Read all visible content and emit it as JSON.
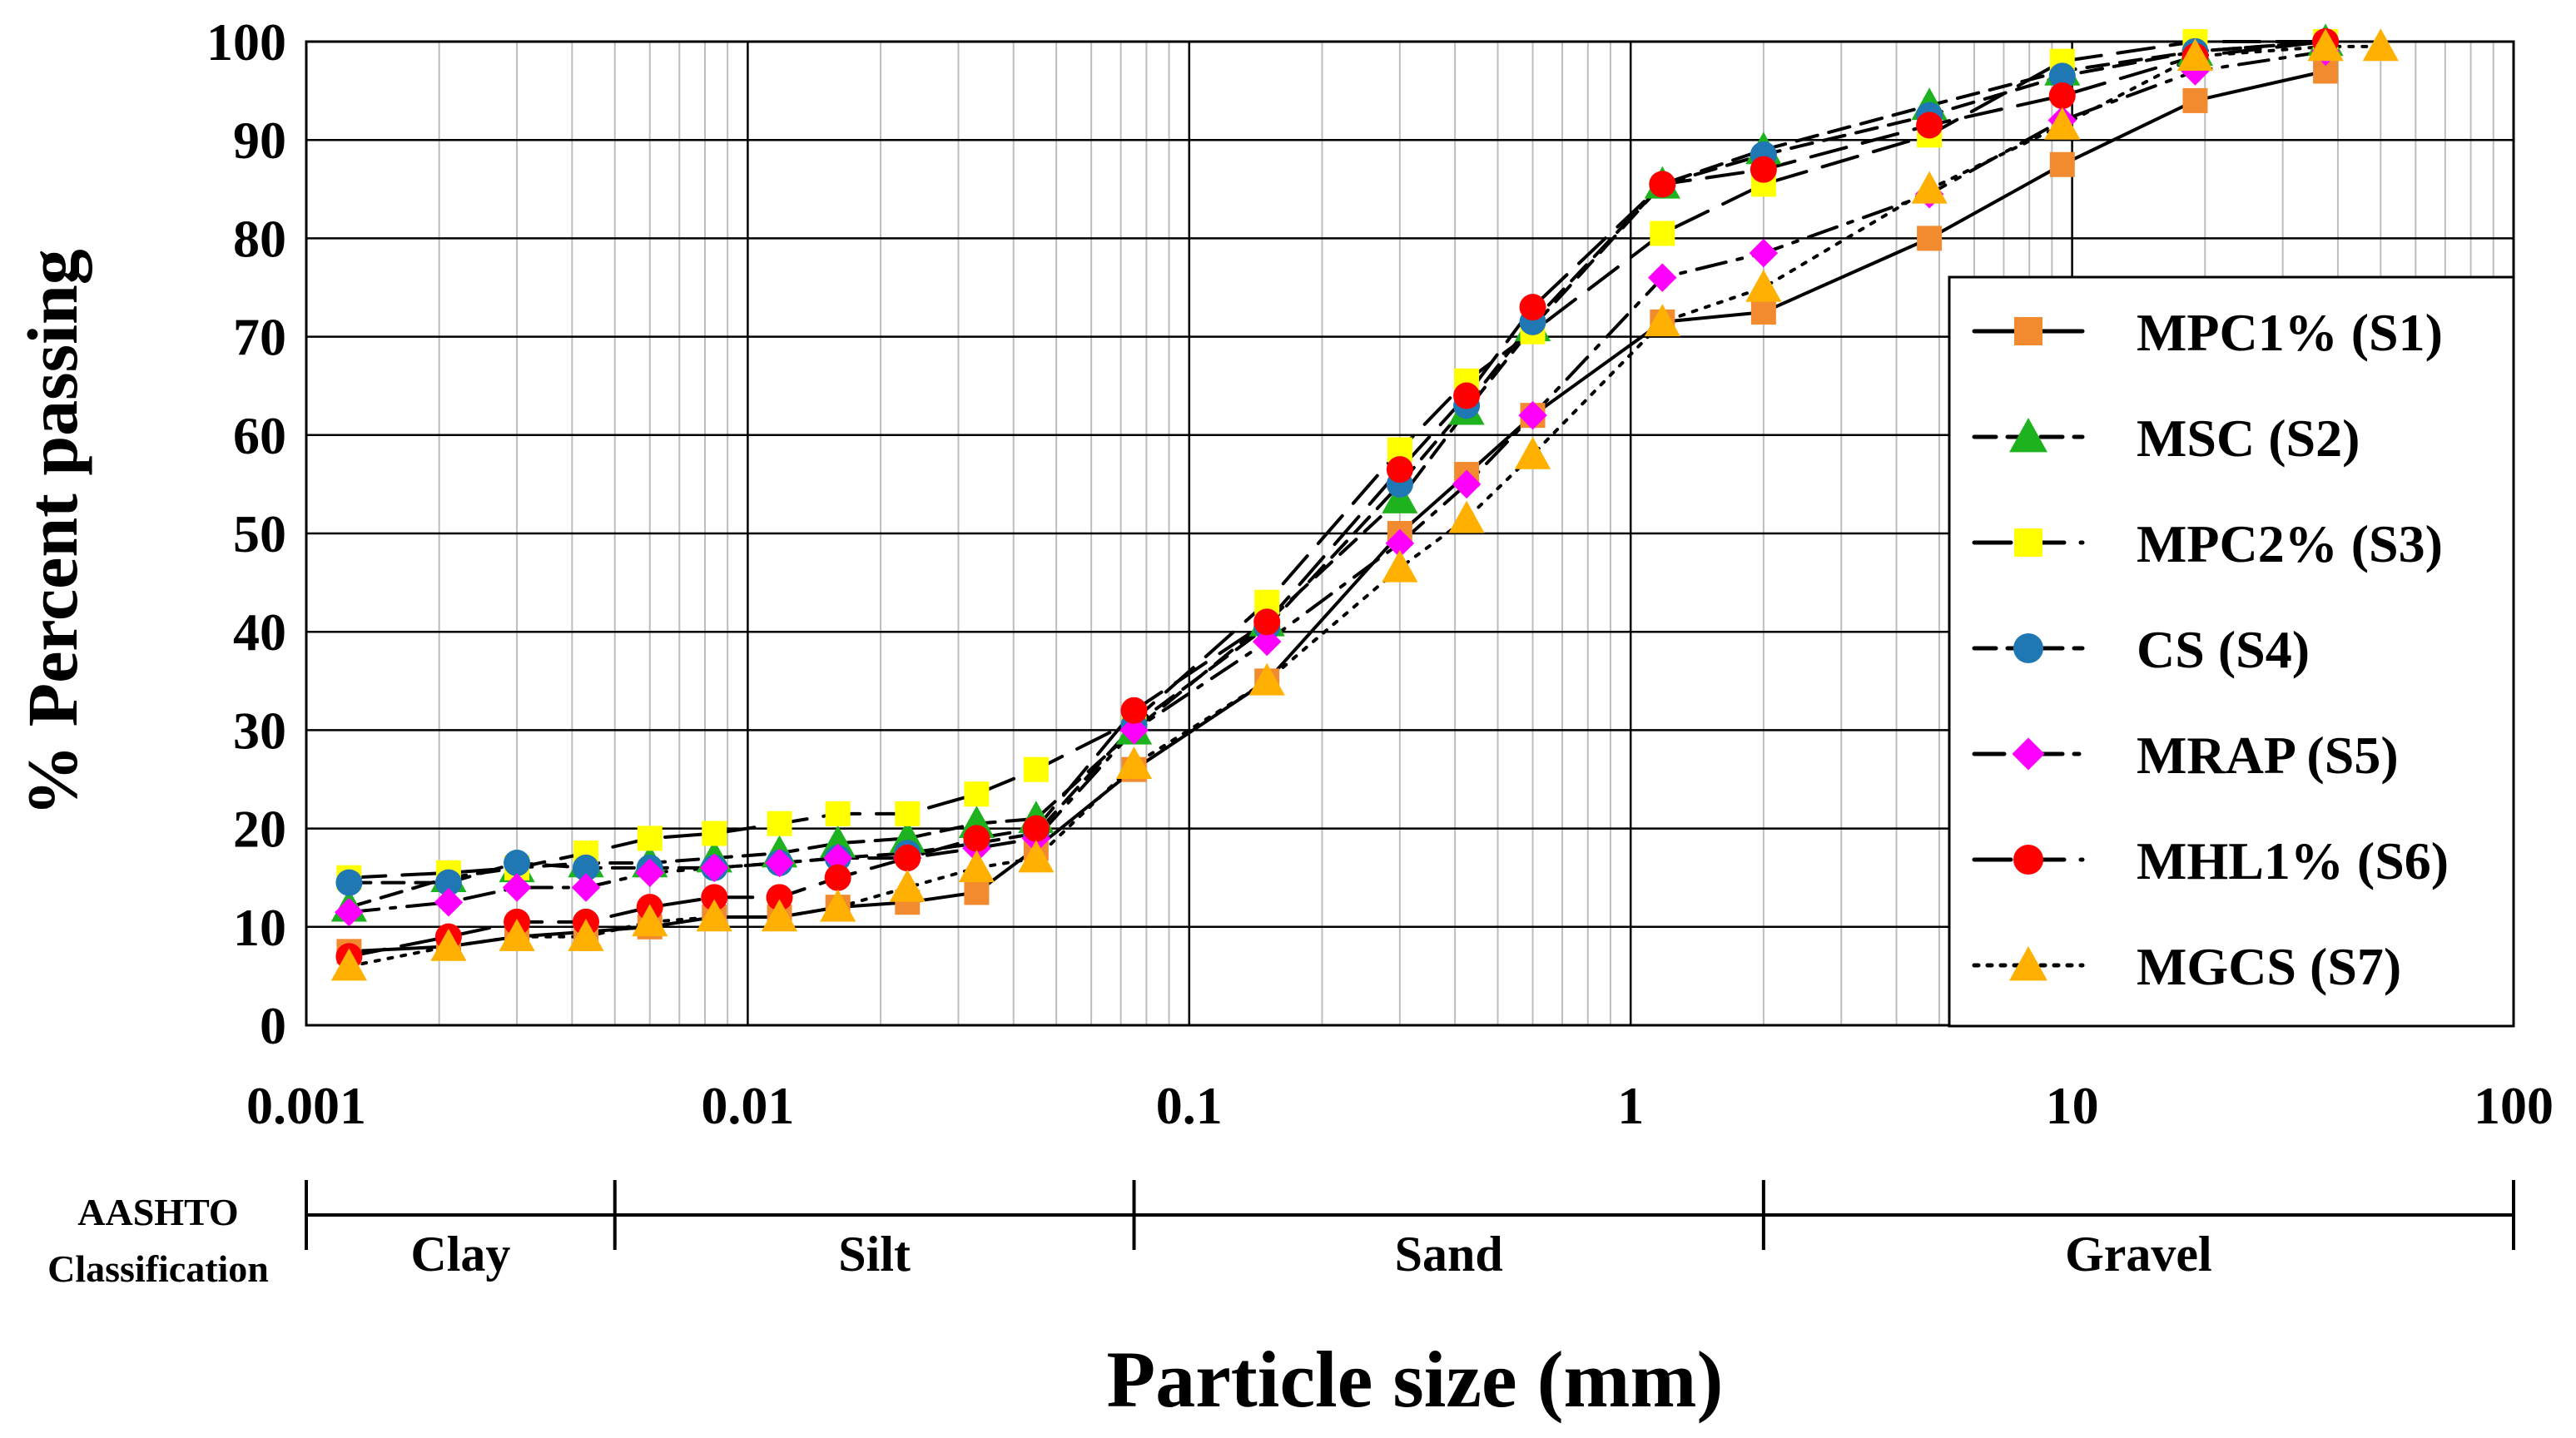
{
  "chart_data": {
    "type": "line",
    "title": "",
    "xlabel": "Particle size (mm)",
    "ylabel": "% Percent passing",
    "xscale": "log",
    "xlim": [
      0.001,
      100
    ],
    "ylim": [
      0,
      100
    ],
    "x_ticks": [
      0.001,
      0.01,
      0.1,
      1,
      10,
      100
    ],
    "x_tick_labels": [
      "0.001",
      "0.01",
      "0.1",
      "1",
      "10",
      "100"
    ],
    "y_ticks": [
      0,
      10,
      20,
      30,
      40,
      50,
      60,
      70,
      80,
      90,
      100
    ],
    "y_tick_labels": [
      "0",
      "10",
      "20",
      "30",
      "40",
      "50",
      "60",
      "70",
      "80",
      "90",
      "100"
    ],
    "grid": true,
    "legend_position": "right",
    "series": [
      {
        "name": "MPC1% (S1)",
        "line_style": "solid",
        "marker": "square",
        "color": "#F28A30",
        "x": [
          0.00125,
          0.0021,
          0.003,
          0.0043,
          0.006,
          0.0084,
          0.0118,
          0.016,
          0.023,
          0.033,
          0.045,
          0.075,
          0.15,
          0.3,
          0.425,
          0.6,
          1.18,
          2.0,
          4.75,
          9.5,
          19,
          37.5
        ],
        "y": [
          7.5,
          8,
          9,
          9.5,
          10,
          11,
          11,
          12,
          12.5,
          13.5,
          18,
          26,
          35,
          50,
          56,
          62,
          71.5,
          72.5,
          80,
          87.5,
          94,
          97
        ]
      },
      {
        "name": "MSC (S2)",
        "line_style": "dashed",
        "marker": "triangle",
        "color": "#1FB21F",
        "x": [
          0.00125,
          0.0021,
          0.003,
          0.0043,
          0.006,
          0.0084,
          0.0118,
          0.016,
          0.023,
          0.033,
          0.045,
          0.075,
          0.15,
          0.3,
          0.425,
          0.6,
          1.18,
          2.0,
          4.75,
          9.5,
          19,
          37.5
        ],
        "y": [
          12,
          15,
          16,
          16.5,
          16.5,
          17,
          17.5,
          18.5,
          19,
          20.5,
          21,
          30,
          41,
          53.5,
          62.5,
          71,
          85.5,
          89,
          93.5,
          97,
          99,
          100
        ]
      },
      {
        "name": "MPC2% (S3)",
        "line_style": "longdash",
        "marker": "square",
        "color": "#FFFF00",
        "x": [
          0.00125,
          0.0021,
          0.003,
          0.0043,
          0.006,
          0.0084,
          0.0118,
          0.016,
          0.023,
          0.033,
          0.045,
          0.075,
          0.15,
          0.3,
          0.425,
          0.6,
          1.18,
          2.0,
          4.75,
          9.5,
          19,
          37.5
        ],
        "y": [
          15,
          15.5,
          16,
          17.5,
          19,
          19.5,
          20.5,
          21.5,
          21.5,
          23.5,
          26,
          31,
          43,
          58.5,
          65.5,
          70.5,
          80.5,
          85.5,
          90.5,
          98,
          100,
          100
        ]
      },
      {
        "name": "CS (S4)",
        "line_style": "dashed",
        "marker": "circle",
        "color": "#1F77B4",
        "x": [
          0.00125,
          0.0021,
          0.003,
          0.0043,
          0.006,
          0.0084,
          0.0118,
          0.016,
          0.023,
          0.033,
          0.045,
          0.075,
          0.15,
          0.3,
          0.425,
          0.6,
          1.18,
          2.0,
          4.75,
          9.5,
          19,
          37.5
        ],
        "y": [
          14.5,
          14.5,
          16.5,
          16,
          16,
          16,
          16.5,
          17,
          17.5,
          18.5,
          19.5,
          30.5,
          40.5,
          55,
          63,
          71.5,
          85.5,
          88.5,
          92.5,
          96.5,
          99,
          100
        ]
      },
      {
        "name": "MRAP (S5)",
        "line_style": "dashdot",
        "marker": "diamond",
        "color": "#FF00FF",
        "x": [
          0.00125,
          0.0021,
          0.003,
          0.0043,
          0.006,
          0.0084,
          0.0118,
          0.016,
          0.023,
          0.033,
          0.045,
          0.075,
          0.15,
          0.3,
          0.425,
          0.6,
          1.18,
          2.0,
          4.75,
          9.5,
          19,
          37.5
        ],
        "y": [
          11.5,
          12.5,
          14,
          14,
          15.5,
          16,
          16.5,
          17,
          17,
          18,
          19,
          30,
          39,
          49,
          55,
          62,
          76,
          78.5,
          84.5,
          92,
          97,
          99
        ]
      },
      {
        "name": "MHL1% (S6)",
        "line_style": "longdash",
        "marker": "circle",
        "color": "#FF0000",
        "x": [
          0.00125,
          0.0021,
          0.003,
          0.0043,
          0.006,
          0.0084,
          0.0118,
          0.016,
          0.023,
          0.033,
          0.045,
          0.075,
          0.15,
          0.3,
          0.425,
          0.6,
          1.18,
          2.0,
          4.75,
          9.5,
          19,
          37.5
        ],
        "y": [
          7,
          9,
          10.5,
          10.5,
          12,
          13,
          13,
          15,
          17,
          19,
          20,
          32,
          41,
          56.5,
          64,
          73,
          85.5,
          87,
          91.5,
          94.5,
          98.5,
          100
        ]
      },
      {
        "name": "MGCS (S7)",
        "line_style": "dotted",
        "marker": "triangle",
        "color": "#FFB000",
        "x": [
          0.00125,
          0.0021,
          0.003,
          0.0043,
          0.006,
          0.0084,
          0.0118,
          0.016,
          0.023,
          0.033,
          0.045,
          0.075,
          0.15,
          0.3,
          0.425,
          0.6,
          1.18,
          2.0,
          4.75,
          9.5,
          19,
          37.5,
          50
        ],
        "y": [
          6,
          8,
          9,
          9,
          10.5,
          11,
          11,
          12,
          14,
          16,
          17,
          26.5,
          35,
          46.5,
          51.5,
          58,
          71.5,
          75,
          85,
          91.5,
          98.5,
          99.5,
          99.5
        ]
      }
    ],
    "classification": {
      "label_line1": "AASHTO",
      "label_line2": "Classification",
      "boundaries": [
        0.001,
        0.005,
        0.075,
        2.0,
        100
      ],
      "ranges": [
        {
          "name": "Clay",
          "from": 0.001,
          "to": 0.005
        },
        {
          "name": "Silt",
          "from": 0.005,
          "to": 0.075
        },
        {
          "name": "Sand",
          "from": 0.075,
          "to": 2.0
        },
        {
          "name": "Gravel",
          "from": 2.0,
          "to": 100
        }
      ]
    }
  }
}
